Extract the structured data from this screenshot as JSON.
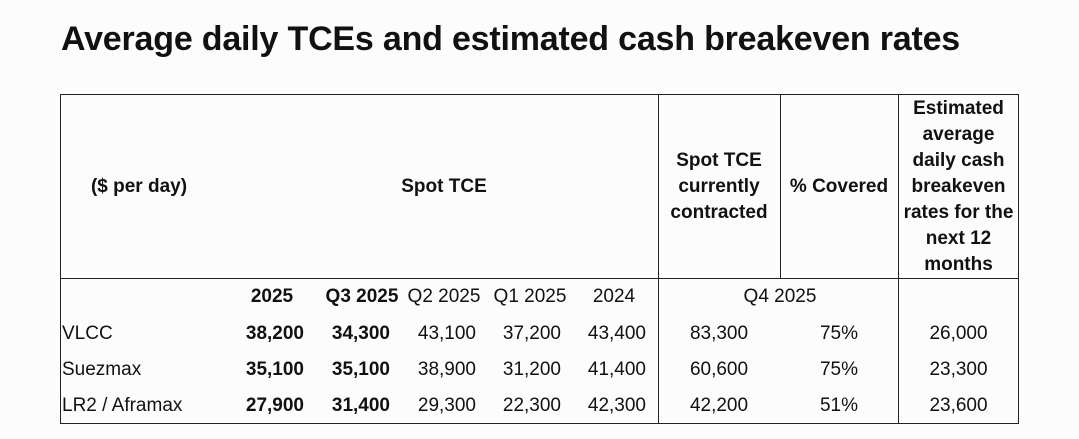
{
  "title": "Average daily TCEs and estimated cash breakeven rates",
  "table": {
    "header": {
      "unit_label": "($ per day)",
      "spot_tce": "Spot TCE",
      "contracted_line1": "Spot TCE",
      "contracted_line2": "currently",
      "contracted_line3": "contracted",
      "covered": "% Covered",
      "breakeven_lines": [
        "Estimated",
        "average",
        "daily cash",
        "breakeven",
        "rates for the",
        "next 12",
        "months"
      ]
    },
    "periods": [
      "2025",
      "Q3 2025",
      "Q2 2025",
      "Q1 2025",
      "2024"
    ],
    "contracted_period": "Q4 2025",
    "rows": [
      {
        "vessel": "VLCC",
        "y2025": "38,200",
        "q3_2025": "34,300",
        "q2_2025": "43,100",
        "q1_2025": "37,200",
        "y2024": "43,400",
        "contracted": "83,300",
        "covered": "75%",
        "breakeven": "26,000"
      },
      {
        "vessel": "Suezmax",
        "y2025": "35,100",
        "q3_2025": "35,100",
        "q2_2025": "38,900",
        "q1_2025": "31,200",
        "y2024": "41,400",
        "contracted": "60,600",
        "covered": "75%",
        "breakeven": "23,300"
      },
      {
        "vessel": "LR2 / Aframax",
        "y2025": "27,900",
        "q3_2025": "31,400",
        "q2_2025": "29,300",
        "q1_2025": "22,300",
        "y2024": "42,300",
        "contracted": "42,200",
        "covered": "51%",
        "breakeven": "23,600"
      }
    ]
  }
}
